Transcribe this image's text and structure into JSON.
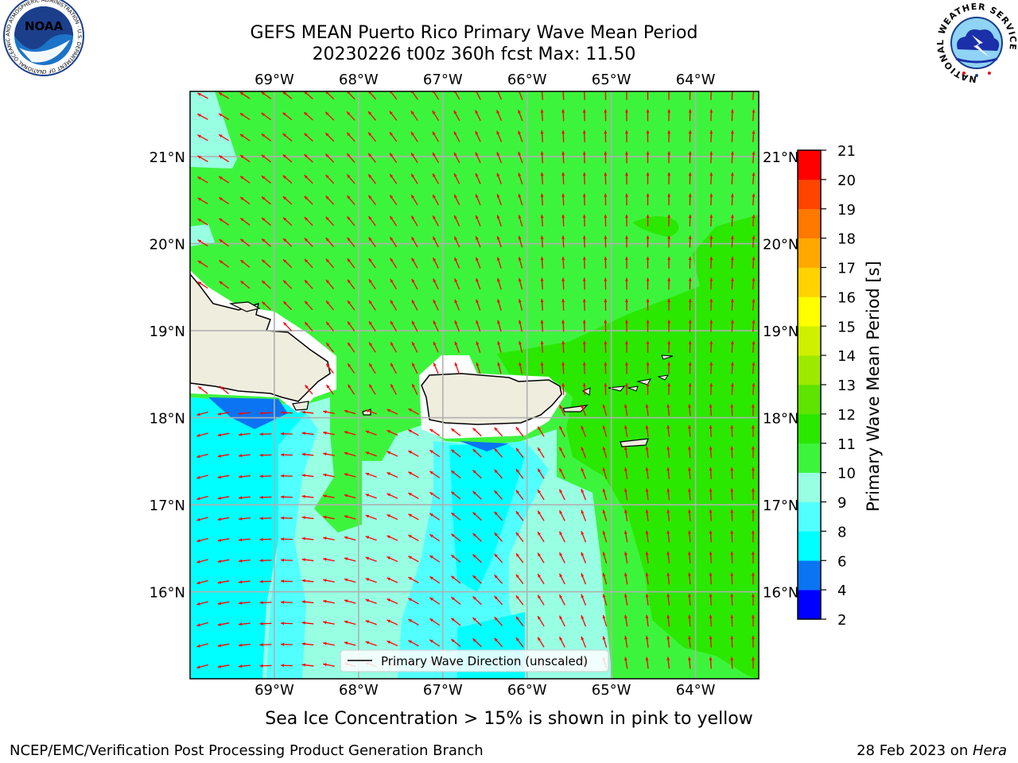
{
  "title": {
    "line1": "GEFS MEAN Puerto Rico Primary Wave Mean Period",
    "line2": "20230226 t00z 360h fcst   Max: 11.50"
  },
  "logos": {
    "noaa": {
      "text": "NOAA",
      "ring_text": "NATIONAL OCEANIC AND ATMOSPHERIC ADMINISTRATION · U.S. DEPARTMENT OF COMMERCE"
    },
    "nws": {
      "ring_text": "NATIONAL WEATHER SERVICE"
    }
  },
  "map": {
    "lon_ticks": [
      "69°W",
      "68°W",
      "67°W",
      "66°W",
      "65°W",
      "64°W"
    ],
    "lat_ticks": [
      "21°N",
      "20°N",
      "19°N",
      "18°N",
      "17°N",
      "16°N"
    ],
    "lon_values": [
      -69,
      -68,
      -67,
      -66,
      -65,
      -64
    ],
    "lat_values": [
      21,
      20,
      19,
      18,
      17,
      16
    ],
    "extent": {
      "lon": [
        -70.0,
        -63.25
      ],
      "lat": [
        15.0,
        21.75
      ]
    },
    "grid": true,
    "arrow_color": "#ff0000",
    "legend_label": "Primary Wave Direction (unscaled)",
    "legend_position": "bottom-center"
  },
  "colorbar": {
    "label": "Primary Wave Mean Period [s]",
    "ticks": [
      "2",
      "4",
      "6",
      "8",
      "9",
      "10",
      "11",
      "12",
      "13",
      "14",
      "15",
      "16",
      "17",
      "18",
      "19",
      "20",
      "21"
    ],
    "colors": [
      "#0000ff",
      "#0a74f3",
      "#00ffff",
      "#52ffff",
      "#98ffe3",
      "#3df43d",
      "#2ae800",
      "#5fe300",
      "#9dea00",
      "#cff000",
      "#ffff00",
      "#ffd200",
      "#ffa800",
      "#ff7800",
      "#ff4400",
      "#ff0000"
    ]
  },
  "caption": "Sea Ice Concentration > 15% is shown in pink to yellow",
  "footer": {
    "left": "NCEP/EMC/Verification Post Processing Product Generation Branch",
    "right_prefix": "28 Feb 2023 on ",
    "right_machine": "Hera"
  }
}
